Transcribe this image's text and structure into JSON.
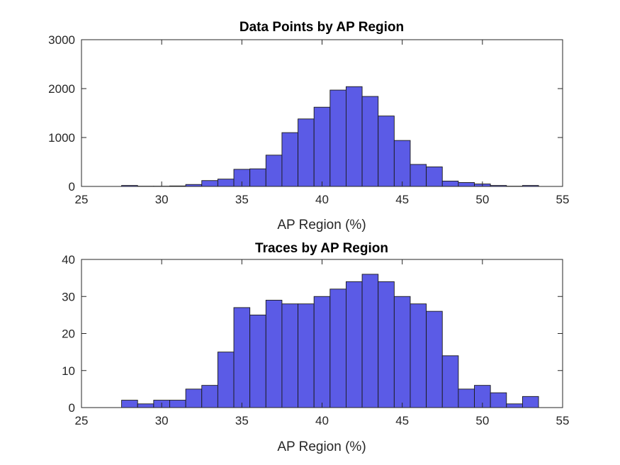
{
  "figure": {
    "bar_color": "#5b5be6",
    "edge_color": "#1a1a1a"
  },
  "chart_data": [
    {
      "type": "bar",
      "title": "Data Points by AP Region",
      "xlabel": "AP Region (%)",
      "ylabel": "",
      "xlim": [
        25,
        55
      ],
      "ylim": [
        0,
        3000
      ],
      "xticks": [
        "25",
        "30",
        "35",
        "40",
        "45",
        "50",
        "55"
      ],
      "yticks": [
        "0",
        "1000",
        "2000",
        "3000"
      ],
      "bin_width": 1,
      "bin_edges_start": 27.5,
      "values": [
        20,
        5,
        5,
        10,
        40,
        120,
        150,
        350,
        360,
        640,
        1100,
        1380,
        1620,
        1970,
        2040,
        1840,
        1440,
        940,
        450,
        400,
        110,
        80,
        50,
        20,
        5,
        20
      ]
    },
    {
      "type": "bar",
      "title": "Traces by AP Region",
      "xlabel": "AP Region (%)",
      "ylabel": "",
      "xlim": [
        25,
        55
      ],
      "ylim": [
        0,
        40
      ],
      "xticks": [
        "25",
        "30",
        "35",
        "40",
        "45",
        "50",
        "55"
      ],
      "yticks": [
        "0",
        "10",
        "20",
        "30",
        "40"
      ],
      "bin_width": 1,
      "bin_edges_start": 27.5,
      "values": [
        2,
        1,
        2,
        2,
        5,
        6,
        15,
        27,
        25,
        29,
        28,
        28,
        30,
        32,
        34,
        36,
        34,
        30,
        28,
        26,
        14,
        5,
        6,
        4,
        1,
        3
      ]
    }
  ]
}
